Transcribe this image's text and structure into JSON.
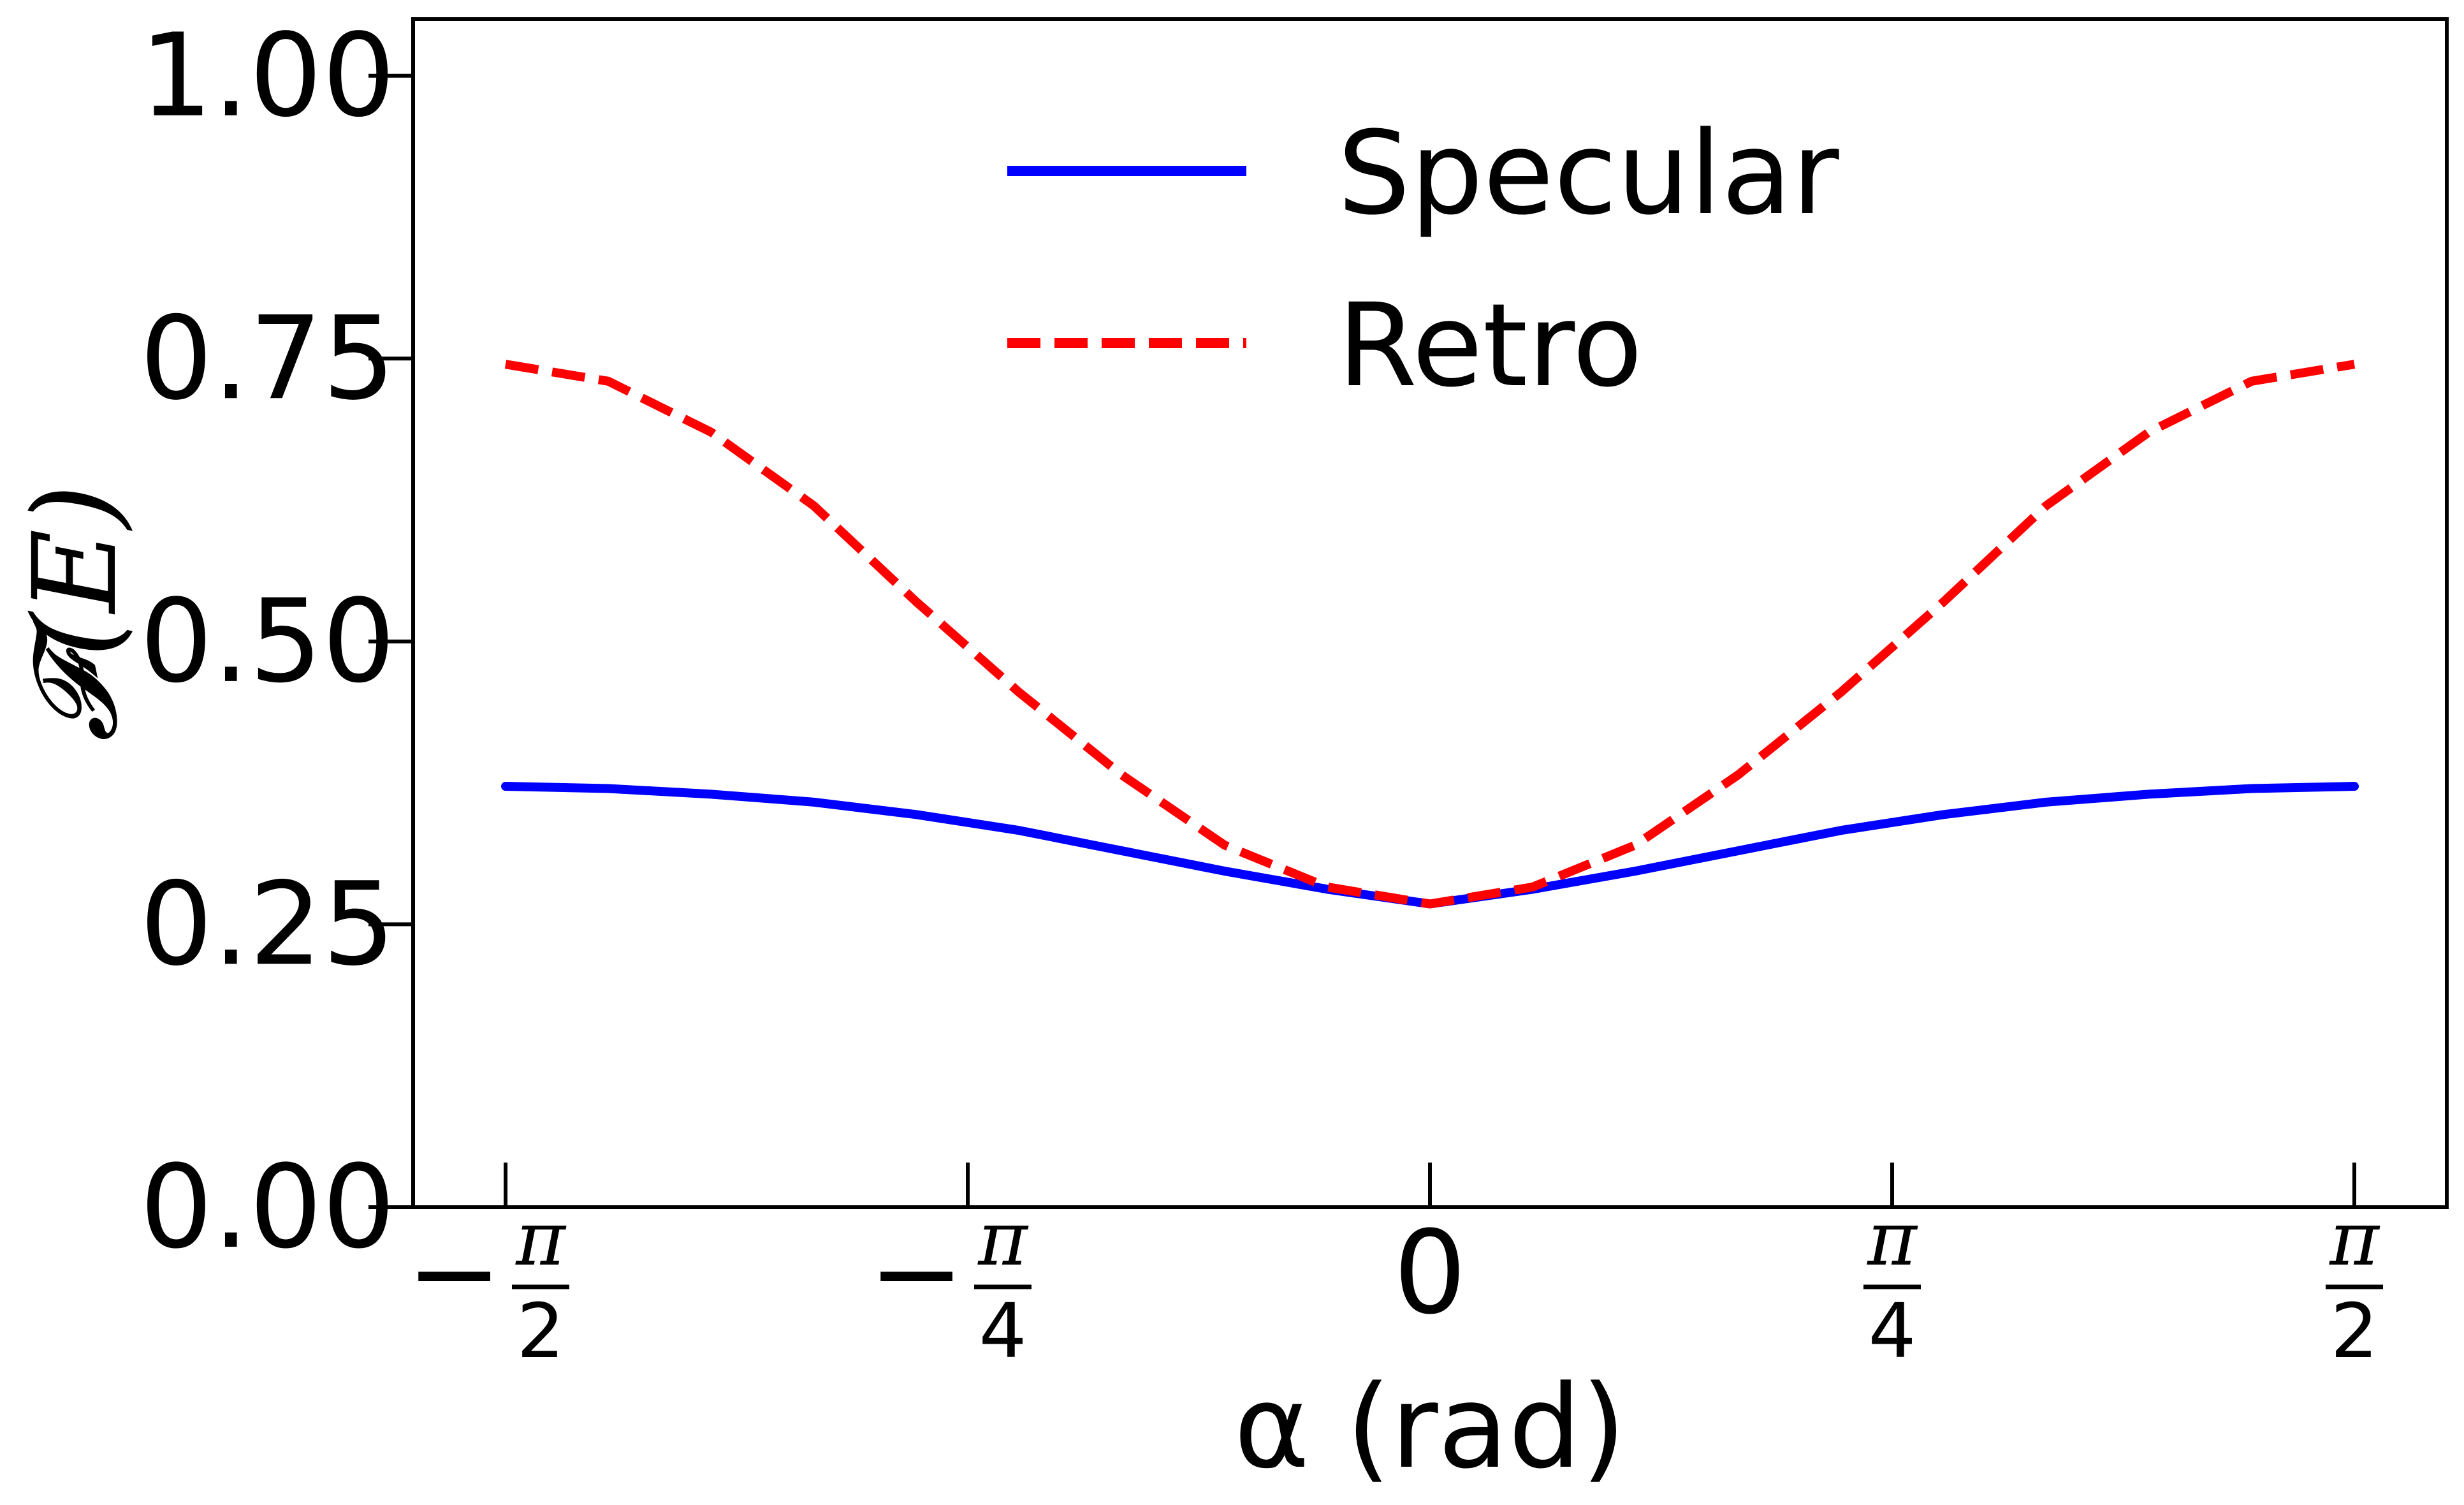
{
  "chart_data": {
    "type": "line",
    "xlabel": "α (rad)",
    "ylabel": "𝓕(E)",
    "xlim": [
      -1.7279,
      1.7279
    ],
    "ylim": [
      0.0,
      1.05
    ],
    "xticks": [
      {
        "value": -1.5708,
        "sign": "−",
        "num": "π",
        "den": "2"
      },
      {
        "value": -0.7854,
        "sign": "−",
        "num": "π",
        "den": "4"
      },
      {
        "value": 0.0,
        "plain": "0"
      },
      {
        "value": 0.7854,
        "sign": "",
        "num": "π",
        "den": "4"
      },
      {
        "value": 1.5708,
        "sign": "",
        "num": "π",
        "den": "2"
      }
    ],
    "yticks": [
      {
        "value": 0.0,
        "label": "0.00"
      },
      {
        "value": 0.25,
        "label": "0.25"
      },
      {
        "value": 0.5,
        "label": "0.50"
      },
      {
        "value": 0.75,
        "label": "0.75"
      },
      {
        "value": 1.0,
        "label": "1.00"
      }
    ],
    "grid": false,
    "legend_position": "top-center",
    "series": [
      {
        "name": "Specular",
        "color": "#0000ff",
        "style": "solid",
        "x": [
          -1.5708,
          -1.3963,
          -1.2217,
          -1.0472,
          -0.8727,
          -0.6981,
          -0.5236,
          -0.3491,
          -0.1745,
          0.0,
          0.1745,
          0.3491,
          0.5236,
          0.6981,
          0.8727,
          1.0472,
          1.2217,
          1.3963,
          1.5708
        ],
        "y": [
          0.372,
          0.37,
          0.365,
          0.358,
          0.347,
          0.333,
          0.315,
          0.297,
          0.281,
          0.268,
          0.281,
          0.297,
          0.315,
          0.333,
          0.347,
          0.358,
          0.365,
          0.37,
          0.372
        ]
      },
      {
        "name": "Retro",
        "color": "#ff0000",
        "style": "dashed",
        "x": [
          -1.5708,
          -1.3963,
          -1.2217,
          -1.0472,
          -0.8727,
          -0.6981,
          -0.5236,
          -0.3491,
          -0.1745,
          0.0,
          0.1745,
          0.3491,
          0.5236,
          0.6981,
          0.8727,
          1.0472,
          1.2217,
          1.3963,
          1.5708
        ],
        "y": [
          0.745,
          0.73,
          0.685,
          0.62,
          0.535,
          0.455,
          0.382,
          0.32,
          0.283,
          0.268,
          0.283,
          0.32,
          0.382,
          0.455,
          0.535,
          0.62,
          0.685,
          0.73,
          0.745
        ]
      }
    ]
  }
}
